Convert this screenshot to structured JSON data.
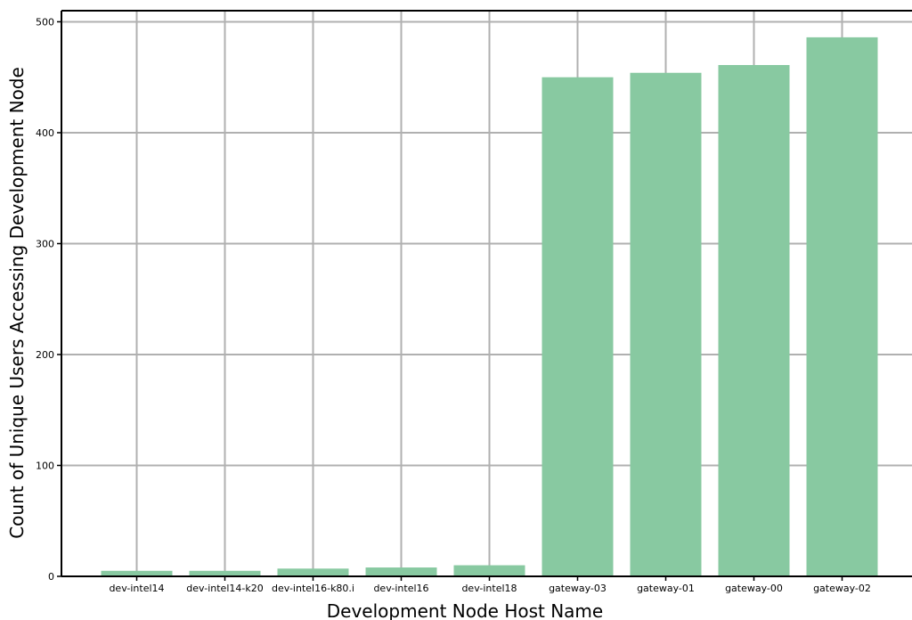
{
  "chart_data": {
    "type": "bar",
    "title": "",
    "xlabel": "Development Node Host Name",
    "ylabel": "Count of Unique Users Accessing Development Node",
    "categories": [
      "dev-intel14",
      "dev-intel14-k20",
      "dev-intel16-k80.i",
      "dev-intel16",
      "dev-intel18",
      "gateway-03",
      "gateway-01",
      "gateway-00",
      "gateway-02"
    ],
    "values": [
      5,
      5,
      7,
      8,
      10,
      450,
      454,
      461,
      486
    ],
    "ylim": [
      0,
      510
    ],
    "yticks": [
      0,
      100,
      200,
      300,
      400,
      500
    ],
    "grid": true,
    "bar_color": "#88c9a1",
    "grid_color": "#b0b0b0",
    "axis_color": "#000000"
  }
}
